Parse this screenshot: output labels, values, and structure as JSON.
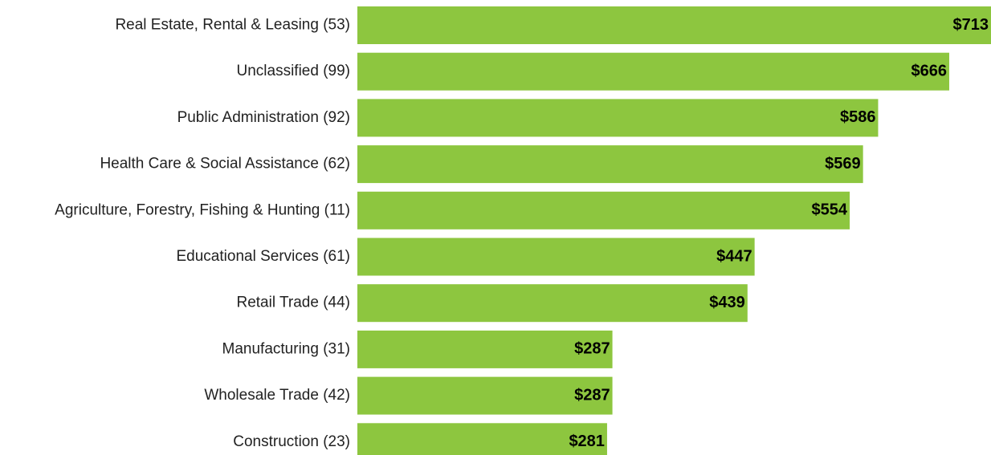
{
  "chart_data": {
    "type": "bar",
    "orientation": "horizontal",
    "categories": [
      "Real Estate, Rental & Leasing (53)",
      "Unclassified (99)",
      "Public Administration (92)",
      "Health Care & Social Assistance (62)",
      "Agriculture, Forestry, Fishing & Hunting (11)",
      "Educational Services (61)",
      "Retail Trade (44)",
      "Manufacturing (31)",
      "Wholesale Trade (42)",
      "Construction (23)"
    ],
    "values": [
      713,
      666,
      586,
      569,
      554,
      447,
      439,
      287,
      287,
      281
    ],
    "value_labels": [
      "$713",
      "$666",
      "$586",
      "$569",
      "$554",
      "$447",
      "$439",
      "$287",
      "$287",
      "$281"
    ],
    "color": "#8dc63f"
  }
}
